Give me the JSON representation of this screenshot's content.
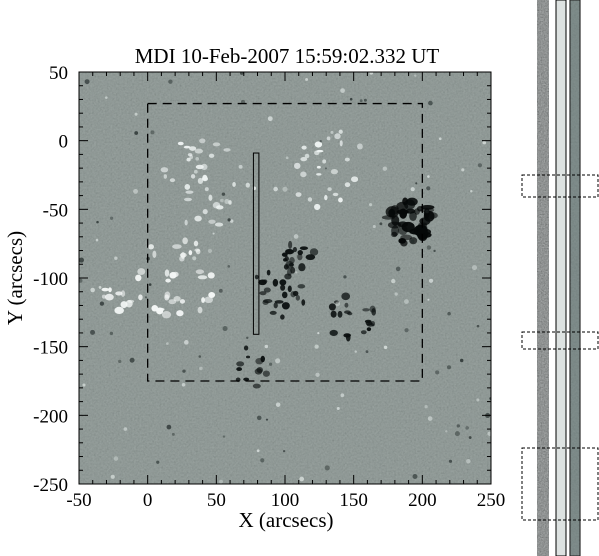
{
  "chart_data": {
    "type": "heatmap",
    "title": "MDI 10-Feb-2007 15:59:02.332 UT",
    "xlabel": "X (arcsecs)",
    "ylabel": "Y (arcsecs)",
    "xlim": [
      -50,
      250
    ],
    "ylim": [
      -250,
      50
    ],
    "x_ticks": [
      "-50",
      "0",
      "50",
      "100",
      "150",
      "200",
      "250"
    ],
    "y_ticks": [
      "50",
      "0",
      "-50",
      "-100",
      "-150",
      "-200",
      "-250"
    ],
    "colormap": "grayscale magnetogram (white = positive polarity, black = negative polarity, gray = neutral)",
    "field_of_view_box": {
      "x": [
        0,
        200
      ],
      "y": [
        -175,
        27
      ],
      "style": "dashed"
    },
    "slit": {
      "x": [
        77,
        81
      ],
      "y": [
        -141,
        -9
      ]
    },
    "strip_panels": 3,
    "strip_highlight_boxes": 3
  }
}
